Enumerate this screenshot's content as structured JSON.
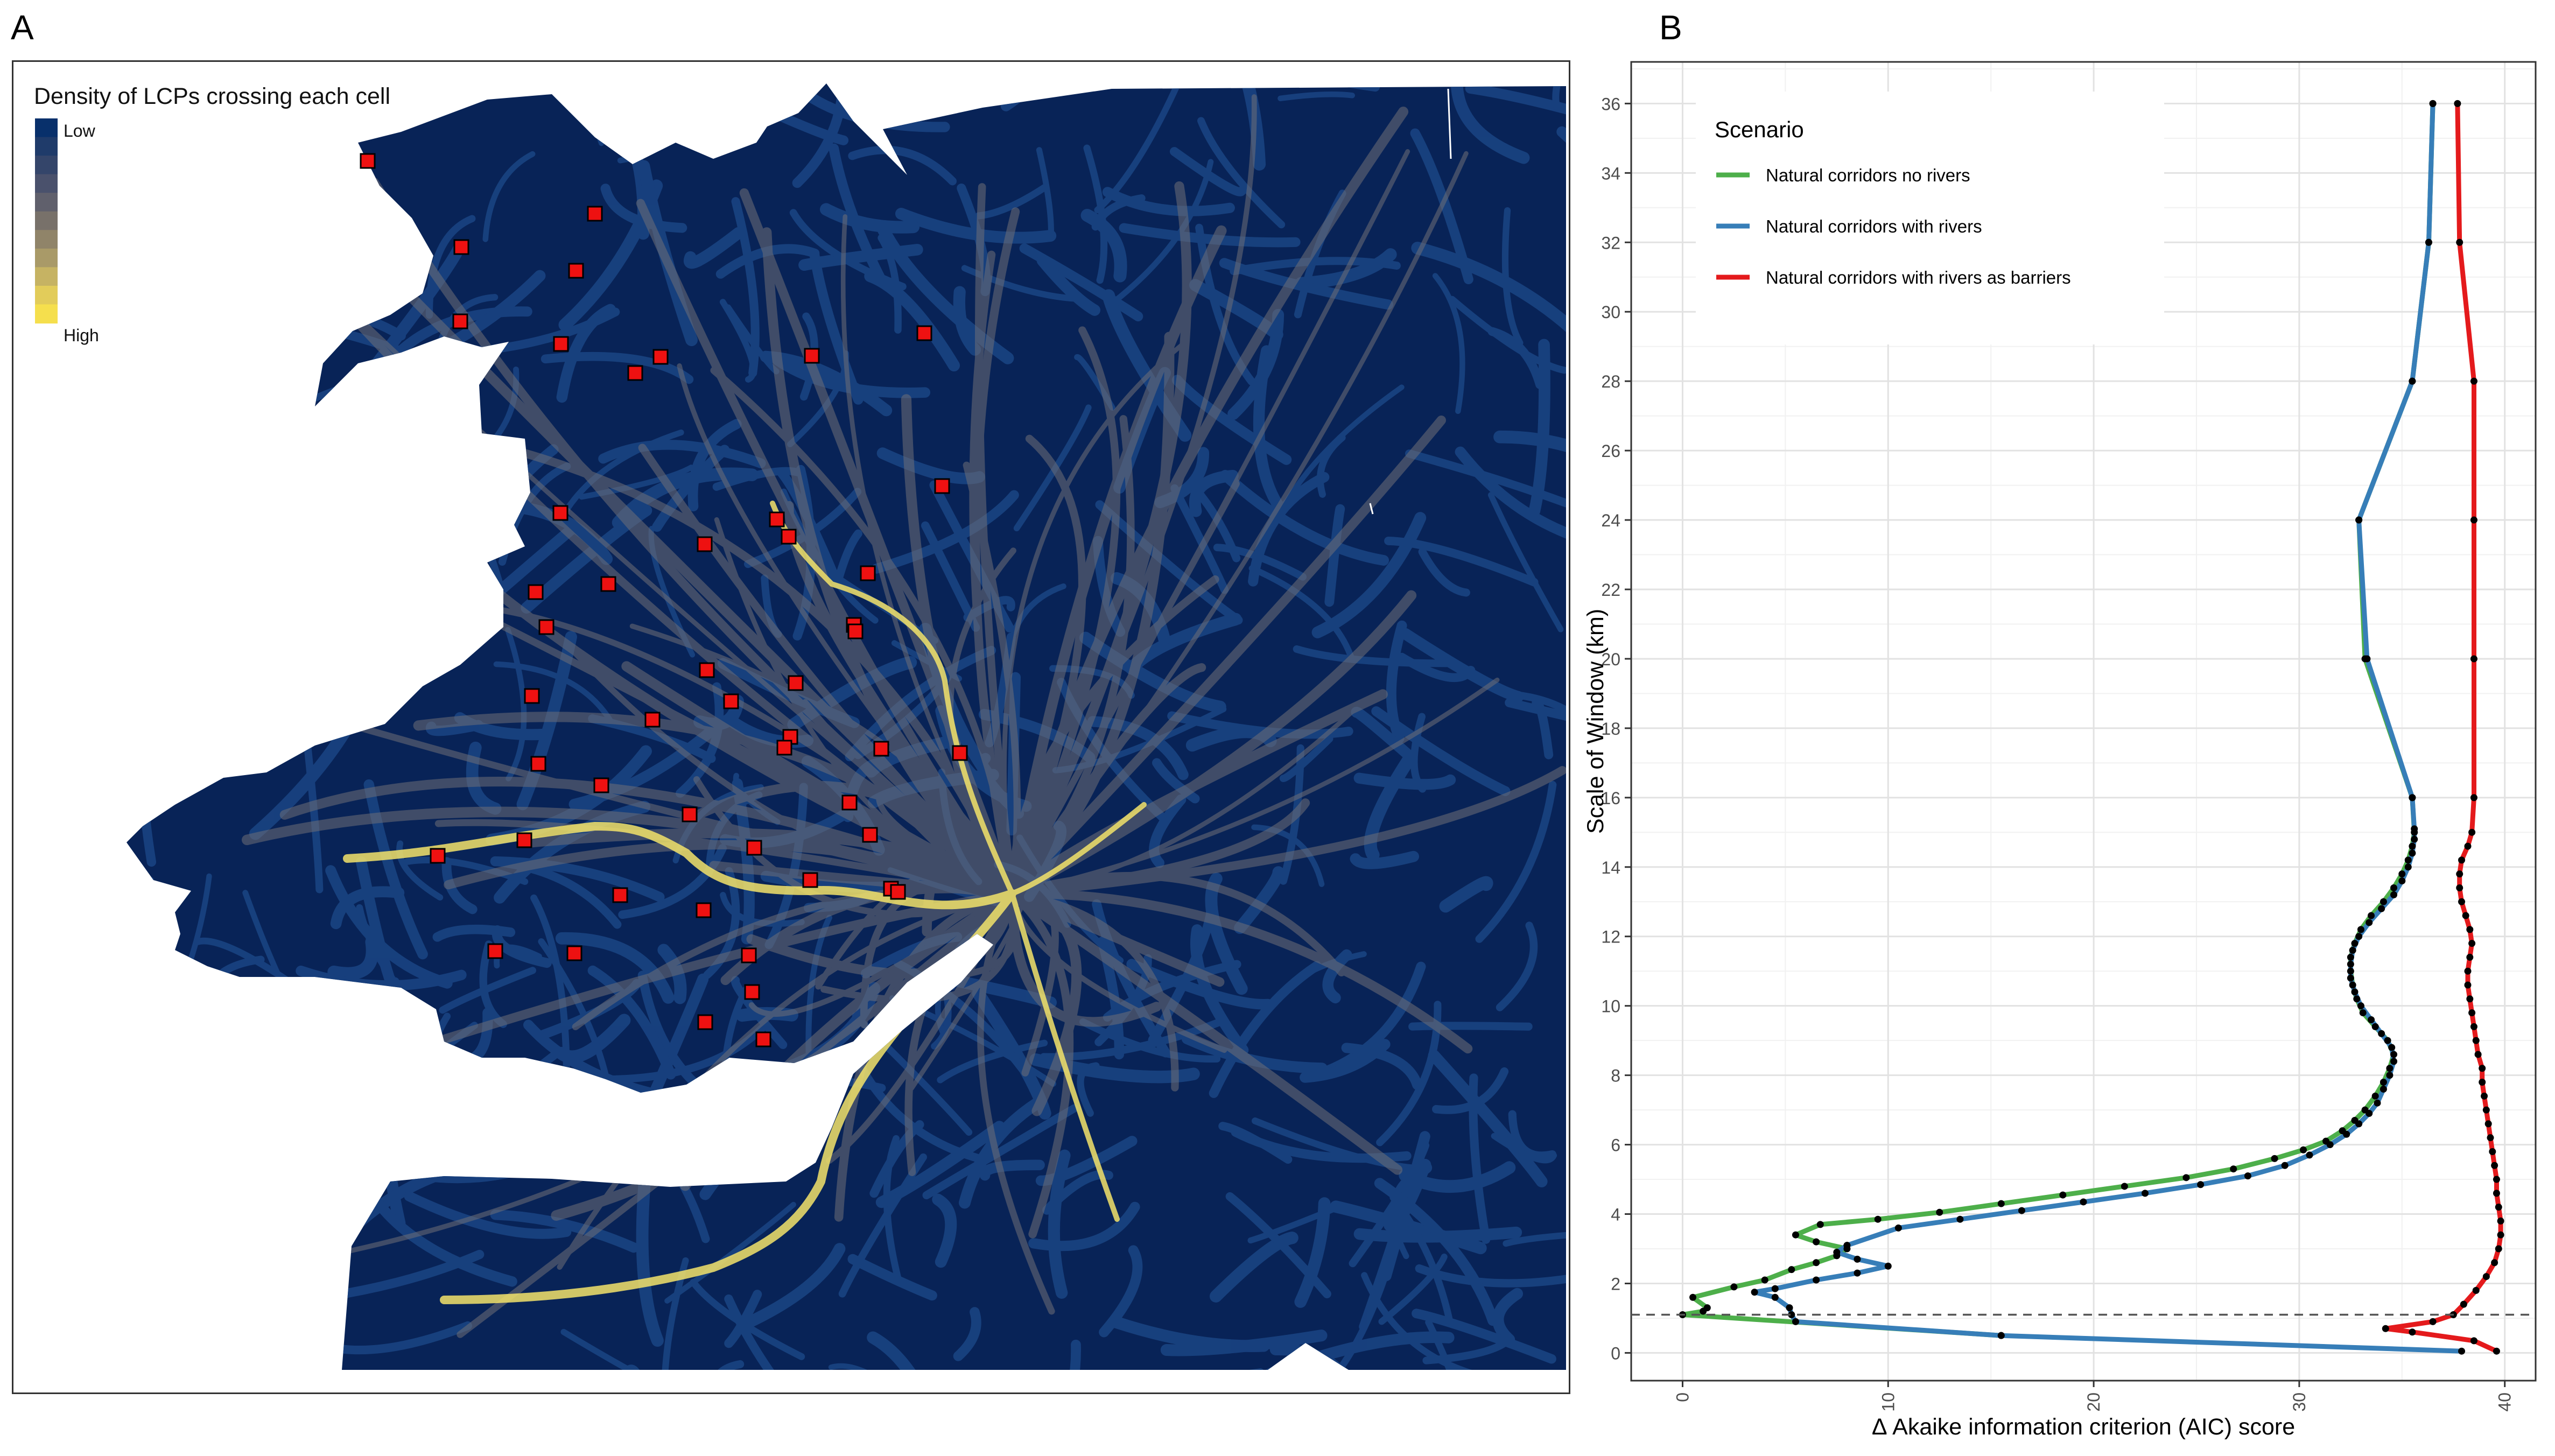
{
  "panels": {
    "a_label": "A",
    "b_label": "B"
  },
  "map": {
    "legend_title": "Density of LCPs crossing each cell",
    "legend_low": "Low",
    "legend_high": "High",
    "legend_colors": [
      "#08306b",
      "#1f3b6a",
      "#34456a",
      "#4a516c",
      "#60606c",
      "#78716a",
      "#908469",
      "#a99a68",
      "#c6b363",
      "#e2cc5a",
      "#f5df4d"
    ],
    "colors": {
      "background": "#082357",
      "route_low": "#1d4a8a",
      "route_high": "#f3e36a",
      "site_fill": "#ee1111",
      "site_stroke": "#000000"
    }
  },
  "chart_data": {
    "type": "line",
    "xlabel": "Δ Akaike information criterion (AIC) score",
    "ylabel": "Scale of Window (km)",
    "xlim": [
      -2.5,
      41.5
    ],
    "ylim": [
      -0.8,
      37.2
    ],
    "x_ticks": [
      "0",
      "10",
      "20",
      "30",
      "40"
    ],
    "y_ticks": [
      "0",
      "2",
      "4",
      "6",
      "8",
      "10",
      "12",
      "14",
      "16",
      "18",
      "20",
      "22",
      "24",
      "26",
      "28",
      "30",
      "32",
      "34",
      "36"
    ],
    "reference_line_y": 1.1,
    "grid": true,
    "legend": {
      "title": "Scenario",
      "placement": "top-left"
    },
    "series": [
      {
        "name": "Natural corridors no rivers",
        "color": "#4daf4a",
        "points": [
          [
            15.5,
            0.5
          ],
          [
            0,
            1.1
          ],
          [
            1,
            1.2
          ],
          [
            1.2,
            1.3
          ],
          [
            0.5,
            1.6
          ],
          [
            2.5,
            1.9
          ],
          [
            4,
            2.1
          ],
          [
            5.3,
            2.4
          ],
          [
            6.5,
            2.6
          ],
          [
            7.5,
            2.8
          ],
          [
            8,
            3.0
          ],
          [
            6.5,
            3.2
          ],
          [
            5.5,
            3.4
          ],
          [
            6.7,
            3.7
          ],
          [
            9.5,
            3.85
          ],
          [
            12.5,
            4.05
          ],
          [
            15.5,
            4.3
          ],
          [
            18.5,
            4.55
          ],
          [
            21.5,
            4.8
          ],
          [
            24.5,
            5.05
          ],
          [
            26.8,
            5.3
          ],
          [
            28.8,
            5.6
          ],
          [
            30.2,
            5.85
          ],
          [
            31.3,
            6.1
          ],
          [
            32.1,
            6.4
          ],
          [
            32.7,
            6.7
          ],
          [
            33.2,
            7.0
          ],
          [
            33.7,
            7.4
          ],
          [
            34.1,
            7.8
          ],
          [
            34.4,
            8.2
          ],
          [
            34.6,
            8.6
          ],
          [
            34.3,
            9.0
          ],
          [
            33.7,
            9.4
          ],
          [
            33.1,
            9.8
          ],
          [
            32.8,
            10.2
          ],
          [
            32.6,
            10.6
          ],
          [
            32.5,
            11.0
          ],
          [
            32.5,
            11.4
          ],
          [
            32.7,
            11.8
          ],
          [
            33.0,
            12.2
          ],
          [
            33.5,
            12.6
          ],
          [
            34.1,
            13.0
          ],
          [
            34.6,
            13.4
          ],
          [
            35.0,
            13.8
          ],
          [
            35.3,
            14.2
          ],
          [
            35.5,
            14.6
          ],
          [
            35.6,
            15.0
          ],
          [
            35.5,
            16.0
          ],
          [
            33.2,
            20.0
          ],
          [
            32.9,
            24.0
          ],
          [
            35.5,
            28.0
          ],
          [
            36.3,
            32.0
          ],
          [
            36.5,
            36.0
          ]
        ]
      },
      {
        "name": "Natural corridors with rivers",
        "color": "#377eb8",
        "points": [
          [
            37.9,
            0.05
          ],
          [
            15.5,
            0.5
          ],
          [
            5.5,
            0.9
          ],
          [
            5.3,
            1.1
          ],
          [
            5.2,
            1.3
          ],
          [
            4.5,
            1.6
          ],
          [
            3.5,
            1.75
          ],
          [
            4.5,
            1.85
          ],
          [
            6.5,
            2.1
          ],
          [
            8.5,
            2.3
          ],
          [
            10,
            2.5
          ],
          [
            8.5,
            2.7
          ],
          [
            7.5,
            2.9
          ],
          [
            8,
            3.1
          ],
          [
            10.5,
            3.6
          ],
          [
            13.5,
            3.85
          ],
          [
            16.5,
            4.1
          ],
          [
            19.5,
            4.35
          ],
          [
            22.5,
            4.6
          ],
          [
            25.2,
            4.85
          ],
          [
            27.5,
            5.1
          ],
          [
            29.3,
            5.4
          ],
          [
            30.5,
            5.7
          ],
          [
            31.5,
            6.0
          ],
          [
            32.3,
            6.3
          ],
          [
            32.9,
            6.6
          ],
          [
            33.4,
            6.9
          ],
          [
            33.8,
            7.2
          ],
          [
            34.1,
            7.6
          ],
          [
            34.4,
            8.0
          ],
          [
            34.6,
            8.4
          ],
          [
            34.5,
            8.8
          ],
          [
            34.0,
            9.2
          ],
          [
            33.5,
            9.6
          ],
          [
            33.0,
            10.0
          ],
          [
            32.7,
            10.4
          ],
          [
            32.5,
            10.8
          ],
          [
            32.5,
            11.2
          ],
          [
            32.6,
            11.6
          ],
          [
            32.9,
            12.0
          ],
          [
            33.4,
            12.4
          ],
          [
            34.0,
            12.8
          ],
          [
            34.6,
            13.2
          ],
          [
            35.0,
            13.6
          ],
          [
            35.3,
            14.0
          ],
          [
            35.5,
            14.4
          ],
          [
            35.6,
            14.8
          ],
          [
            35.6,
            15.1
          ],
          [
            35.5,
            16.0
          ],
          [
            33.3,
            20.0
          ],
          [
            32.9,
            24.0
          ],
          [
            35.5,
            28.0
          ],
          [
            36.3,
            32.0
          ],
          [
            36.5,
            36.0
          ]
        ]
      },
      {
        "name": "Natural corridors with rivers as barriers",
        "color": "#e41a1c",
        "points": [
          [
            39.6,
            0.05
          ],
          [
            38.5,
            0.35
          ],
          [
            35.5,
            0.6
          ],
          [
            34.2,
            0.7
          ],
          [
            36.5,
            0.9
          ],
          [
            37.5,
            1.1
          ],
          [
            38.0,
            1.4
          ],
          [
            38.6,
            1.8
          ],
          [
            39.1,
            2.2
          ],
          [
            39.5,
            2.6
          ],
          [
            39.7,
            3.0
          ],
          [
            39.8,
            3.4
          ],
          [
            39.8,
            3.8
          ],
          [
            39.7,
            4.2
          ],
          [
            39.6,
            4.6
          ],
          [
            39.6,
            5.0
          ],
          [
            39.5,
            5.4
          ],
          [
            39.4,
            5.8
          ],
          [
            39.3,
            6.2
          ],
          [
            39.2,
            6.6
          ],
          [
            39.1,
            7.0
          ],
          [
            39.0,
            7.4
          ],
          [
            38.9,
            7.8
          ],
          [
            38.9,
            8.2
          ],
          [
            38.7,
            8.6
          ],
          [
            38.6,
            9.0
          ],
          [
            38.5,
            9.4
          ],
          [
            38.4,
            9.8
          ],
          [
            38.3,
            10.2
          ],
          [
            38.2,
            10.6
          ],
          [
            38.2,
            11.0
          ],
          [
            38.3,
            11.4
          ],
          [
            38.4,
            11.8
          ],
          [
            38.3,
            12.2
          ],
          [
            38.1,
            12.6
          ],
          [
            37.9,
            13.0
          ],
          [
            37.8,
            13.4
          ],
          [
            37.8,
            13.8
          ],
          [
            37.9,
            14.2
          ],
          [
            38.2,
            14.6
          ],
          [
            38.4,
            15.0
          ],
          [
            38.5,
            16.0
          ],
          [
            38.5,
            20.0
          ],
          [
            38.5,
            24.0
          ],
          [
            38.5,
            28.0
          ],
          [
            37.8,
            32.0
          ],
          [
            37.7,
            36.0
          ]
        ]
      }
    ]
  }
}
